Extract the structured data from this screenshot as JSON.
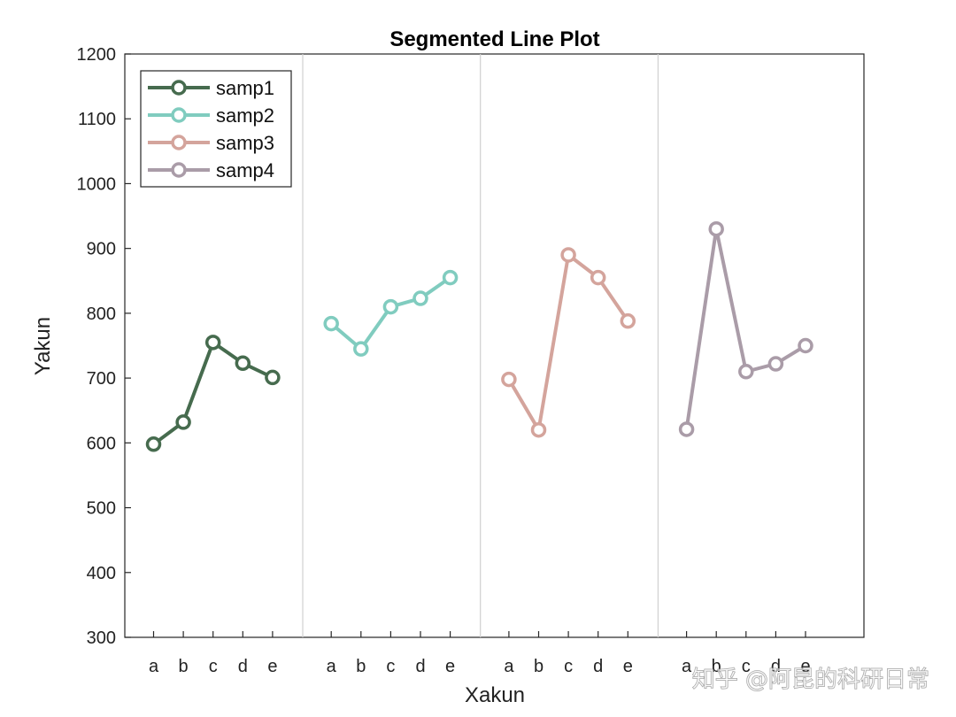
{
  "watermark": "知乎 @阿昆的科研日常",
  "chart_data": {
    "type": "line",
    "title": "Segmented Line Plot",
    "xlabel": "Xakun",
    "ylabel": "Yakun",
    "ylim": [
      300,
      1200
    ],
    "yticks": [
      300,
      400,
      500,
      600,
      700,
      800,
      900,
      1000,
      1100,
      1200
    ],
    "categories": [
      "a",
      "b",
      "c",
      "d",
      "e"
    ],
    "grid": false,
    "segment_separators": true,
    "legend_position": "top-left",
    "series": [
      {
        "name": "samp1",
        "color": "#466B4E",
        "values": [
          598,
          632,
          755,
          723,
          701
        ]
      },
      {
        "name": "samp2",
        "color": "#80CCBF",
        "values": [
          784,
          745,
          810,
          823,
          855
        ]
      },
      {
        "name": "samp3",
        "color": "#D4A49C",
        "values": [
          698,
          620,
          890,
          855,
          788
        ]
      },
      {
        "name": "samp4",
        "color": "#AA9CA8",
        "values": [
          621,
          930,
          710,
          722,
          750
        ]
      }
    ]
  }
}
